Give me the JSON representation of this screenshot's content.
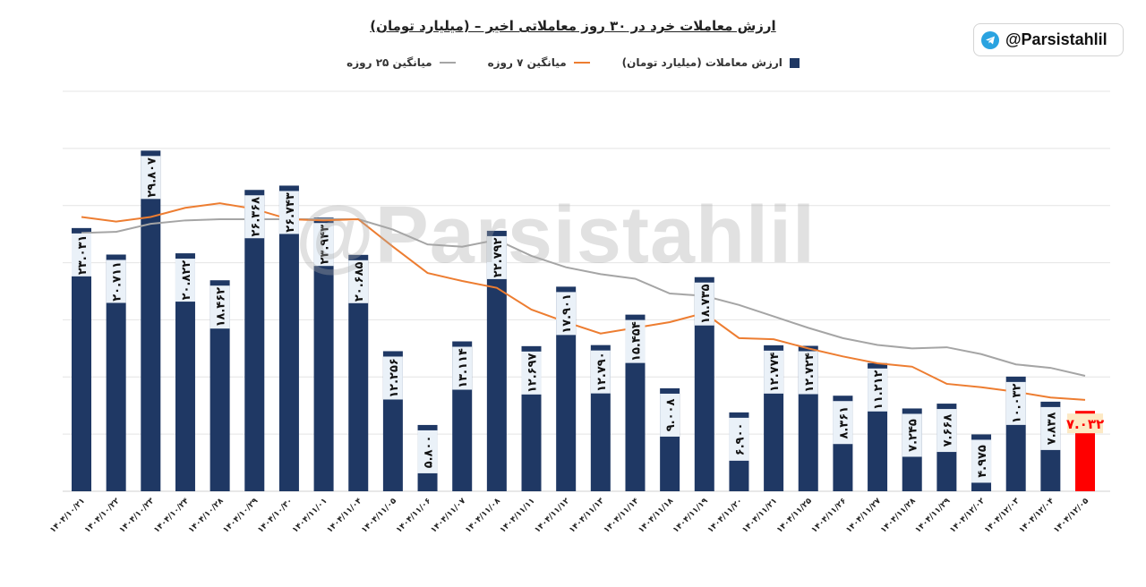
{
  "title": "ارزش معاملات خرد در ۳۰ روز معاملاتی اخیر – (میلیارد تومان)",
  "brand": {
    "handle": "@Parsistahlil",
    "icon": "telegram-icon"
  },
  "watermark": "@Parsistahlil",
  "legend": [
    {
      "label": "ارزش معاملات (میلیارد تومان)",
      "color": "#1f3864",
      "kind": "bar"
    },
    {
      "label": "میانگین ۷ روزه",
      "color": "#ed7d31",
      "kind": "line"
    },
    {
      "label": "میانگین ۲۵ روزه",
      "color": "#a5a5a5",
      "kind": "line"
    }
  ],
  "chart_data": {
    "type": "bar",
    "title": "ارزش معاملات خرد در ۳۰ روز معاملاتی اخیر – (میلیارد تومان)",
    "ylim": [
      0,
      35
    ],
    "grid": true,
    "y_axis_labels_shown": false,
    "legend_placement": "top",
    "categories": [
      "۱۴۰۴/۱۰/۲۱",
      "۱۴۰۴/۱۰/۲۲",
      "۱۴۰۴/۱۰/۲۳",
      "۱۴۰۴/۱۰/۲۴",
      "۱۴۰۴/۱۰/۲۸",
      "۱۴۰۴/۱۰/۲۹",
      "۱۴۰۴/۱۰/۳۰",
      "۱۴۰۴/۱۱/۰۱",
      "۱۴۰۴/۱۱/۰۴",
      "۱۴۰۴/۱۱/۰۵",
      "۱۴۰۴/۱۱/۰۶",
      "۱۴۰۴/۱۱/۰۷",
      "۱۴۰۴/۱۱/۰۸",
      "۱۴۰۴/۱۱/۱۱",
      "۱۴۰۴/۱۱/۱۲",
      "۱۴۰۴/۱۱/۱۳",
      "۱۴۰۴/۱۱/۱۴",
      "۱۴۰۴/۱۱/۱۸",
      "۱۴۰۴/۱۱/۱۹",
      "۱۴۰۴/۱۱/۲۰",
      "۱۴۰۴/۱۱/۲۱",
      "۱۴۰۴/۱۱/۲۵",
      "۱۴۰۴/۱۱/۲۶",
      "۱۴۰۴/۱۱/۲۷",
      "۱۴۰۴/۱۱/۲۸",
      "۱۴۰۴/۱۱/۲۹",
      "۱۴۰۴/۱۲/۰۲",
      "۱۴۰۴/۱۲/۰۳",
      "۱۴۰۴/۱۲/۰۴",
      "۱۴۰۴/۱۲/۰۵"
    ],
    "series": [
      {
        "name": "ارزش معاملات (میلیارد تومان)",
        "type": "bar",
        "color": "#1f3864",
        "highlight_last_color": "#ff0000",
        "values": [
          23.031,
          20.711,
          29.807,
          20.822,
          18.462,
          26.368,
          26.743,
          23.943,
          20.685,
          12.256,
          5.8,
          13.114,
          22.792,
          12.697,
          17.901,
          12.79,
          15.454,
          9.008,
          18.735,
          6.9,
          12.774,
          12.724,
          8.361,
          11.212,
          7.245,
          7.668,
          4.975,
          10.032,
          7.838,
          7.032
        ],
        "labels": [
          "۲۳.۰۳۱",
          "۲۰.۷۱۱",
          "۲۹.۸۰۷",
          "۲۰.۸۲۲",
          "۱۸.۴۶۲",
          "۲۶.۳۶۸",
          "۲۶.۷۴۳",
          "۲۳.۹۴۳",
          "۲۰.۶۸۵",
          "۱۲.۲۵۶",
          "۵.۸۰۰",
          "۱۳.۱۱۴",
          "۲۲.۷۹۲",
          "۱۲.۶۹۷",
          "۱۷.۹۰۱",
          "۱۲.۷۹۰",
          "۱۵.۴۵۴",
          "۹.۰۰۸",
          "۱۸.۷۳۵",
          "۶.۹۰۰",
          "۱۲.۷۷۴",
          "۱۲.۷۲۴",
          "۸.۳۶۱",
          "۱۱.۲۱۲",
          "۷.۲۴۵",
          "۷.۶۶۸",
          "۴.۹۷۵",
          "۱۰.۰۳۲",
          "۷.۸۳۸",
          "۷.۰۳۲"
        ]
      },
      {
        "name": "میانگین ۷ روزه",
        "type": "line",
        "color": "#ed7d31",
        "values": [
          24.0,
          23.6,
          24.0,
          24.8,
          25.2,
          24.7,
          23.8,
          23.7,
          23.8,
          21.4,
          19.1,
          18.4,
          17.8,
          15.9,
          14.8,
          13.8,
          14.3,
          14.8,
          15.6,
          13.4,
          13.3,
          12.5,
          11.8,
          11.2,
          10.9,
          9.4,
          9.1,
          8.7,
          8.2,
          8.0
        ]
      },
      {
        "name": "میانگین ۲۵ روزه",
        "type": "line",
        "color": "#a5a5a5",
        "values": [
          22.6,
          22.7,
          23.4,
          23.7,
          23.8,
          23.8,
          23.8,
          23.8,
          23.8,
          22.9,
          21.6,
          21.4,
          22.0,
          20.6,
          19.6,
          19.0,
          18.6,
          17.3,
          17.1,
          16.3,
          15.3,
          14.3,
          13.4,
          12.8,
          12.5,
          12.6,
          12.0,
          11.1,
          10.8,
          10.1
        ]
      }
    ]
  }
}
